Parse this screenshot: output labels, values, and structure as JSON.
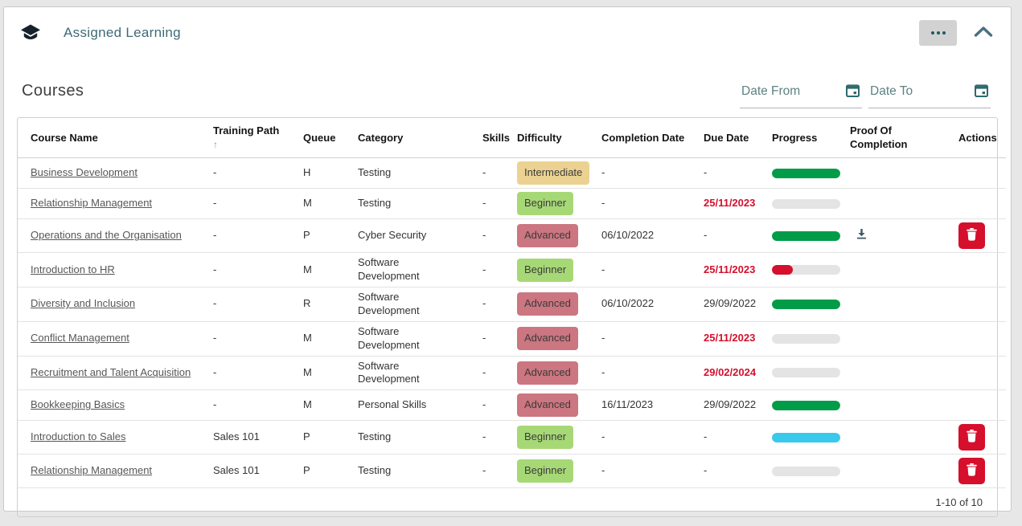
{
  "card": {
    "title": "Assigned Learning"
  },
  "section_title": "Courses",
  "filters": {
    "date_from_placeholder": "Date From",
    "date_to_placeholder": "Date To"
  },
  "icons": {
    "header_left": "graduation-cap-icon",
    "more_options": "ellipsis-icon",
    "collapse": "chevron-up-icon",
    "date_pickers": "calendar-icon",
    "proof": "download-icon",
    "delete": "trash-icon",
    "sort": "arrow-up-icon"
  },
  "table": {
    "columns": [
      {
        "label": "Course Name"
      },
      {
        "label": "Training Path",
        "sort_icon": "↑"
      },
      {
        "label": "Queue"
      },
      {
        "label": "Category"
      },
      {
        "label": "Skills"
      },
      {
        "label": "Difficulty"
      },
      {
        "label": "Completion Date"
      },
      {
        "label": "Due Date"
      },
      {
        "label": "Progress"
      },
      {
        "label": "Proof Of Completion"
      },
      {
        "label": "Actions"
      }
    ],
    "rows": [
      {
        "course": "Business Development",
        "training_path": "-",
        "queue": "H",
        "category": "Testing",
        "skills": "-",
        "difficulty": "Intermediate",
        "completion_date": "-",
        "due_date": "-",
        "due_overdue": false,
        "progress": {
          "percent": 100,
          "color": "green"
        },
        "proof_download": false,
        "deletable": false
      },
      {
        "course": "Relationship Management",
        "training_path": "-",
        "queue": "M",
        "category": "Testing",
        "skills": "-",
        "difficulty": "Beginner",
        "completion_date": "-",
        "due_date": "25/11/2023",
        "due_overdue": true,
        "progress": {
          "percent": 0
        },
        "proof_download": false,
        "deletable": false
      },
      {
        "course": "Operations and the Organisation",
        "training_path": "-",
        "queue": "P",
        "category": "Cyber Security",
        "skills": "-",
        "difficulty": "Advanced",
        "completion_date": "06/10/2022",
        "due_date": "-",
        "due_overdue": false,
        "progress": {
          "percent": 100,
          "color": "green"
        },
        "proof_download": true,
        "deletable": true
      },
      {
        "course": "Introduction to HR",
        "training_path": "-",
        "queue": "M",
        "category": "Software Development",
        "skills": "-",
        "difficulty": "Beginner",
        "completion_date": "-",
        "due_date": "25/11/2023",
        "due_overdue": true,
        "progress": {
          "percent": 30,
          "color": "red"
        },
        "proof_download": false,
        "deletable": false
      },
      {
        "course": "Diversity and Inclusion",
        "training_path": "-",
        "queue": "R",
        "category": "Software Development",
        "skills": "-",
        "difficulty": "Advanced",
        "completion_date": "06/10/2022",
        "due_date": "29/09/2022",
        "due_overdue": false,
        "progress": {
          "percent": 100,
          "color": "green"
        },
        "proof_download": false,
        "deletable": false
      },
      {
        "course": "Conflict Management",
        "training_path": "-",
        "queue": "M",
        "category": "Software Development",
        "skills": "-",
        "difficulty": "Advanced",
        "completion_date": "-",
        "due_date": "25/11/2023",
        "due_overdue": true,
        "progress": {
          "percent": 0
        },
        "proof_download": false,
        "deletable": false
      },
      {
        "course": "Recruitment and Talent Acquisition",
        "training_path": "-",
        "queue": "M",
        "category": "Software Development",
        "skills": "-",
        "difficulty": "Advanced",
        "completion_date": "-",
        "due_date": "29/02/2024",
        "due_overdue": true,
        "progress": {
          "percent": 0
        },
        "proof_download": false,
        "deletable": false
      },
      {
        "course": "Bookkeeping Basics",
        "training_path": "-",
        "queue": "M",
        "category": "Personal Skills",
        "skills": "-",
        "difficulty": "Advanced",
        "completion_date": "16/11/2023",
        "due_date": "29/09/2022",
        "due_overdue": false,
        "progress": {
          "percent": 100,
          "color": "green"
        },
        "proof_download": false,
        "deletable": false
      },
      {
        "course": "Introduction to Sales",
        "training_path": "Sales 101",
        "queue": "P",
        "category": "Testing",
        "skills": "-",
        "difficulty": "Beginner",
        "completion_date": "-",
        "due_date": "-",
        "due_overdue": false,
        "progress": {
          "percent": 100,
          "color": "cyan"
        },
        "proof_download": false,
        "deletable": true
      },
      {
        "course": "Relationship Management",
        "training_path": "Sales 101",
        "queue": "P",
        "category": "Testing",
        "skills": "-",
        "difficulty": "Beginner",
        "completion_date": "-",
        "due_date": "-",
        "due_overdue": false,
        "progress": {
          "percent": 0
        },
        "proof_download": false,
        "deletable": true
      }
    ]
  },
  "pagination": {
    "label": "1-10 of 10"
  },
  "palette": {
    "difficulty": {
      "Intermediate": "#ecd292",
      "Beginner": "#a7d876",
      "Advanced": "#cb7680"
    },
    "progress": {
      "green": "#029c49",
      "cyan": "#38c9ec",
      "red": "#d50f2c"
    },
    "progress_track": "#e4e4e4",
    "overdue_red": "#d50f2c",
    "accent_teal": "#2d6a6e",
    "title_color": "#3e6a77"
  }
}
